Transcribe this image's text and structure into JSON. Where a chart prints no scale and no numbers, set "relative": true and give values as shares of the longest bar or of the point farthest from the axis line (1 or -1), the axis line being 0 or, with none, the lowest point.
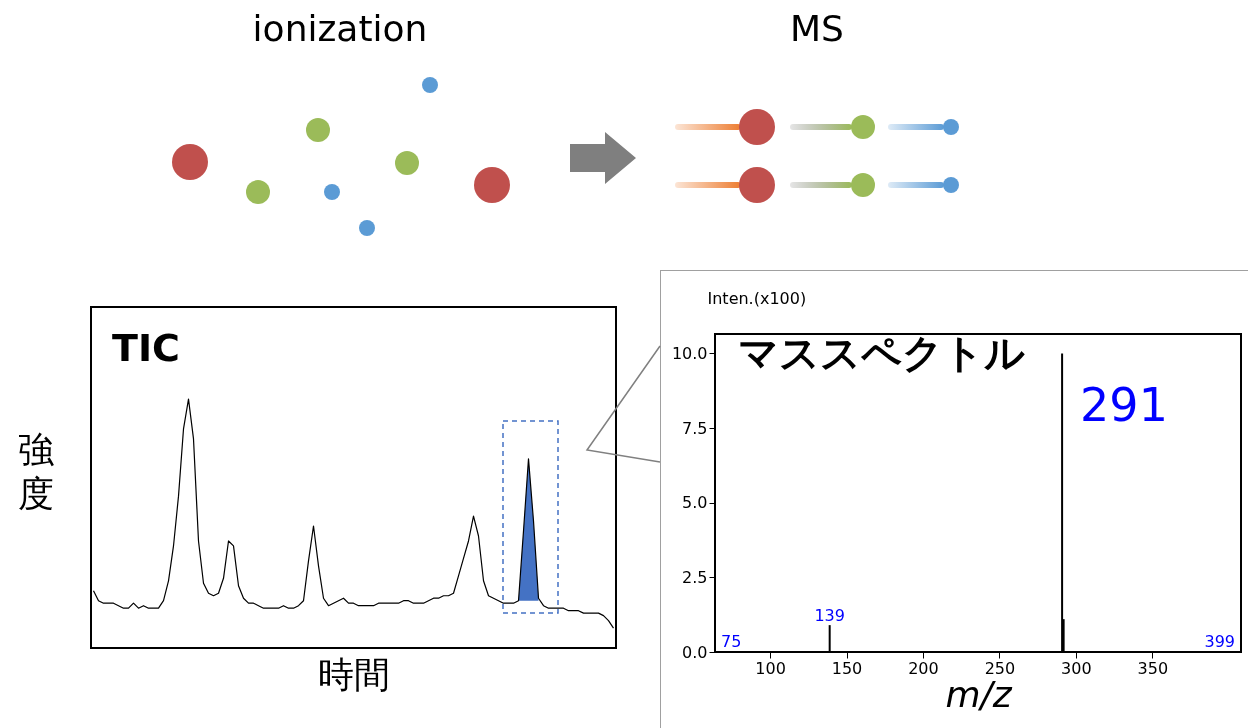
{
  "chart_data": [
    {
      "type": "other",
      "annotations": [
        "ionization",
        "MS"
      ]
    },
    {
      "type": "line",
      "title": "TIC",
      "xlabel": "時間",
      "ylabel": "強度",
      "relative": true,
      "categories": [
        null,
        null,
        null,
        null,
        null,
        null,
        null,
        null,
        null,
        null,
        null,
        null,
        null,
        null,
        null,
        null,
        null,
        null,
        null,
        null,
        null,
        null,
        null,
        null,
        null,
        null,
        null,
        null,
        null,
        null,
        null,
        null,
        null,
        null,
        null,
        null,
        null,
        null,
        null,
        null,
        null,
        null,
        null,
        null,
        null,
        null,
        null,
        null,
        null,
        null,
        null,
        null,
        null,
        null,
        null,
        null,
        null,
        null,
        null,
        null,
        null,
        null,
        null,
        null,
        null,
        null,
        null,
        null,
        null,
        null,
        null,
        null,
        null,
        null,
        null,
        null,
        null,
        null,
        null,
        null,
        null,
        null,
        null,
        null,
        null,
        null,
        null,
        null,
        null,
        null,
        null,
        null,
        null,
        null,
        null,
        null,
        null,
        null,
        null,
        null,
        null,
        null,
        null,
        null,
        null
      ],
      "series": [
        {
          "color": "#000000",
          "values": [
            0.23,
            0.19,
            0.18,
            0.18,
            0.18,
            0.17,
            0.16,
            0.16,
            0.18,
            0.16,
            0.17,
            0.16,
            0.16,
            0.16,
            0.19,
            0.27,
            0.41,
            0.61,
            0.88,
            1,
            0.84,
            0.43,
            0.26,
            0.22,
            0.21,
            0.22,
            0.28,
            0.43,
            0.41,
            0.25,
            0.2,
            0.18,
            0.18,
            0.17,
            0.16,
            0.16,
            0.16,
            0.16,
            0.17,
            0.16,
            0.16,
            0.17,
            0.19,
            0.35,
            0.49,
            0.33,
            0.2,
            0.17,
            0.18,
            0.19,
            0.2,
            0.18,
            0.18,
            0.17,
            0.17,
            0.17,
            0.17,
            0.18,
            0.18,
            0.18,
            0.18,
            0.18,
            0.19,
            0.19,
            0.18,
            0.18,
            0.18,
            0.19,
            0.2,
            0.2,
            0.21,
            0.21,
            0.22,
            0.29,
            0.36,
            0.43,
            0.53,
            0.45,
            0.27,
            0.21,
            0.2,
            0.19,
            0.18,
            0.18,
            0.18,
            0.19,
            0.47,
            0.76,
            0.51,
            0.2,
            0.17,
            0.16,
            0.16,
            0.16,
            0.16,
            0.15,
            0.15,
            0.15,
            0.14,
            0.14,
            0.14,
            0.14,
            0.13,
            0.11,
            0.08
          ]
        },
        {
          "type": "area",
          "color": "#4472c4",
          "values": [
            null,
            null,
            null,
            null,
            null,
            null,
            null,
            null,
            null,
            null,
            null,
            null,
            null,
            null,
            null,
            null,
            null,
            null,
            null,
            null,
            null,
            null,
            null,
            null,
            null,
            null,
            null,
            null,
            null,
            null,
            null,
            null,
            null,
            null,
            null,
            null,
            null,
            null,
            null,
            null,
            null,
            null,
            null,
            null,
            null,
            null,
            null,
            null,
            null,
            null,
            null,
            null,
            null,
            null,
            null,
            null,
            null,
            null,
            null,
            null,
            null,
            null,
            null,
            null,
            null,
            null,
            null,
            null,
            null,
            null,
            null,
            null,
            null,
            null,
            null,
            null,
            null,
            null,
            null,
            null,
            null,
            null,
            null,
            null,
            null,
            0.19,
            0.47,
            0.76,
            0.51,
            0.2,
            null,
            null,
            null,
            null,
            null,
            null,
            null,
            null,
            null,
            null,
            null,
            null,
            null,
            null,
            null
          ]
        }
      ]
    },
    {
      "type": "bar",
      "title": "マススペクトル",
      "xlabel": "m/z",
      "ylabel": "Inten.(x100)",
      "x": [
        139,
        291,
        292
      ],
      "series": [
        {
          "color": "#000000",
          "values": [
            0.9,
            10.0,
            1.1
          ]
        }
      ],
      "xlim": [
        64,
        408
      ],
      "xticks": [
        100,
        150,
        200,
        250,
        300,
        350
      ],
      "ylim": [
        0,
        10.65
      ],
      "yticks": [
        {
          "value": 0,
          "label": "0.0"
        },
        {
          "value": 2.5,
          "label": "2.5"
        },
        {
          "value": 5,
          "label": "5.0"
        },
        {
          "value": 7.5,
          "label": "7.5"
        },
        {
          "value": 10,
          "label": "10.0"
        }
      ],
      "annotations": [
        {
          "text": "291",
          "x": 291,
          "y": 10
        },
        {
          "text": "139",
          "x": 139,
          "y": 0.9
        },
        "75",
        "399"
      ]
    }
  ]
}
